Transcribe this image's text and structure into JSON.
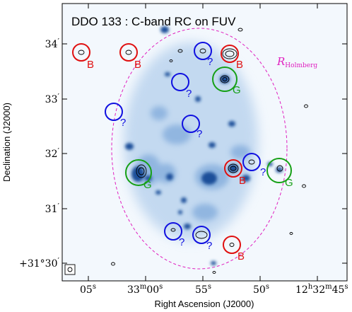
{
  "title": "DDO 133 : C-band RC on FUV",
  "axes": {
    "xlabel": "Right Ascension (J2000)",
    "ylabel": "Declination (J2000)",
    "x_ticks": [
      {
        "main": "05",
        "sup": "s"
      },
      {
        "main": "33",
        "sup": "m",
        "main2": "00",
        "sup2": "s"
      },
      {
        "main": "55",
        "sup": "s"
      },
      {
        "main": "50",
        "sup": "s"
      },
      {
        "main": "12",
        "sup": "h",
        "main2": "32",
        "sup2": "m",
        "main3": "45",
        "sup3": "s"
      }
    ],
    "y_ticks": [
      {
        "main": "34",
        "sup": "′"
      },
      {
        "main": "33",
        "sup": "′"
      },
      {
        "main": "32",
        "sup": "′"
      },
      {
        "main": "31",
        "sup": "′"
      },
      {
        "main": "+31°30",
        "sup": "′"
      }
    ]
  },
  "holmberg_label": {
    "main": "R",
    "sub": "Holmberg"
  },
  "colors": {
    "background_fuv": "#f3f8fd",
    "fuv_blob": "#1a4f9a",
    "ellipse": "#e020c0",
    "label_background": "#b00000",
    "label_galaxy": "#16a016",
    "label_unknown": "#1010e0",
    "contour": "#000000"
  },
  "source_labels": [
    {
      "type": "B",
      "text": "B"
    },
    {
      "type": "B",
      "text": "B"
    },
    {
      "type": "?",
      "text": "?"
    },
    {
      "type": "B",
      "text": "B"
    },
    {
      "type": "G",
      "text": "G"
    },
    {
      "type": "?",
      "text": "?"
    },
    {
      "type": "?",
      "text": "?"
    },
    {
      "type": "?",
      "text": "?"
    },
    {
      "type": "?",
      "text": "?"
    },
    {
      "type": "G",
      "text": "G"
    },
    {
      "type": "B",
      "text": "B"
    },
    {
      "type": "?",
      "text": "?"
    },
    {
      "type": "G",
      "text": "G"
    },
    {
      "type": "?",
      "text": "?"
    },
    {
      "type": "?",
      "text": "?"
    },
    {
      "type": "B",
      "text": "B"
    }
  ],
  "beam_icon": "beam-ellipse-icon"
}
